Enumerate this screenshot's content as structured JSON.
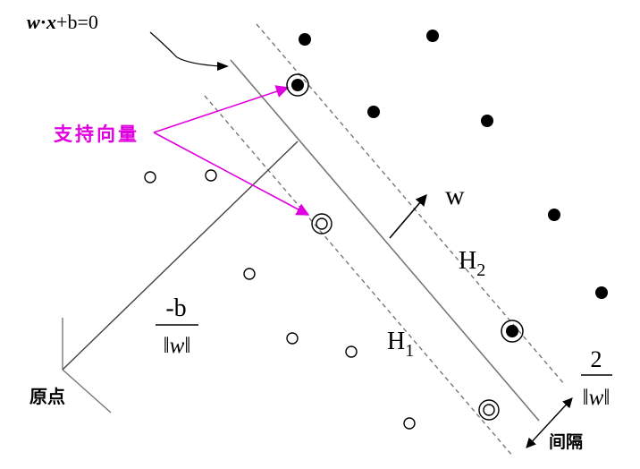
{
  "labels": {
    "hyperplane_w": "w",
    "hyperplane_dot": "·",
    "hyperplane_x": "x",
    "hyperplane_rest": "+b=0",
    "support_vectors": "支持向量",
    "w_vector": "w",
    "h2_main": "H",
    "h2_sub": "2",
    "h1_main": "H",
    "h1_sub": "1",
    "bias_numerator": "-b",
    "bias_denominator": "‖w‖",
    "origin": "原点",
    "margin_numerator": "2",
    "margin_denominator": "‖w‖",
    "margin": "间隔"
  },
  "colors": {
    "ink": "#000000",
    "margin_line": "#777777",
    "guide_line": "#444444",
    "support_vector_accent": "#e000e0"
  },
  "points": {
    "positive_class": "filled-dot",
    "negative_class": "hollow-circle",
    "support_vectors": "double-circle"
  }
}
